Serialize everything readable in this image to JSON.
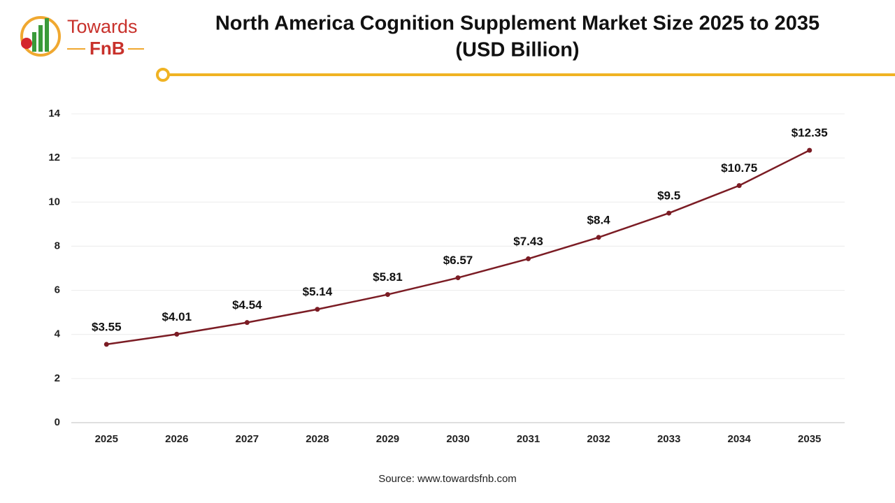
{
  "logo": {
    "top": "Towards",
    "bottom": "FnB"
  },
  "chart_data": {
    "type": "line",
    "title": [
      "North America Cognition Supplement Market Size 2025 to 2035",
      "(USD Billion)"
    ],
    "categories": [
      "2025",
      "2026",
      "2027",
      "2028",
      "2029",
      "2030",
      "2031",
      "2032",
      "2033",
      "2034",
      "2035"
    ],
    "values": [
      3.55,
      4.01,
      4.54,
      5.14,
      5.81,
      6.57,
      7.43,
      8.4,
      9.5,
      10.75,
      12.35
    ],
    "value_labels": [
      "$3.55",
      "$4.01",
      "$4.54",
      "$5.14",
      "$5.81",
      "$6.57",
      "$7.43",
      "$8.4",
      "$9.5",
      "$10.75",
      "$12.35"
    ],
    "color": "#7b1c24",
    "ylim": [
      0,
      14
    ],
    "yticks": [
      0,
      2,
      4,
      6,
      8,
      10,
      12,
      14
    ],
    "grid": true,
    "source": "Source: www.towardsfnb.com"
  }
}
